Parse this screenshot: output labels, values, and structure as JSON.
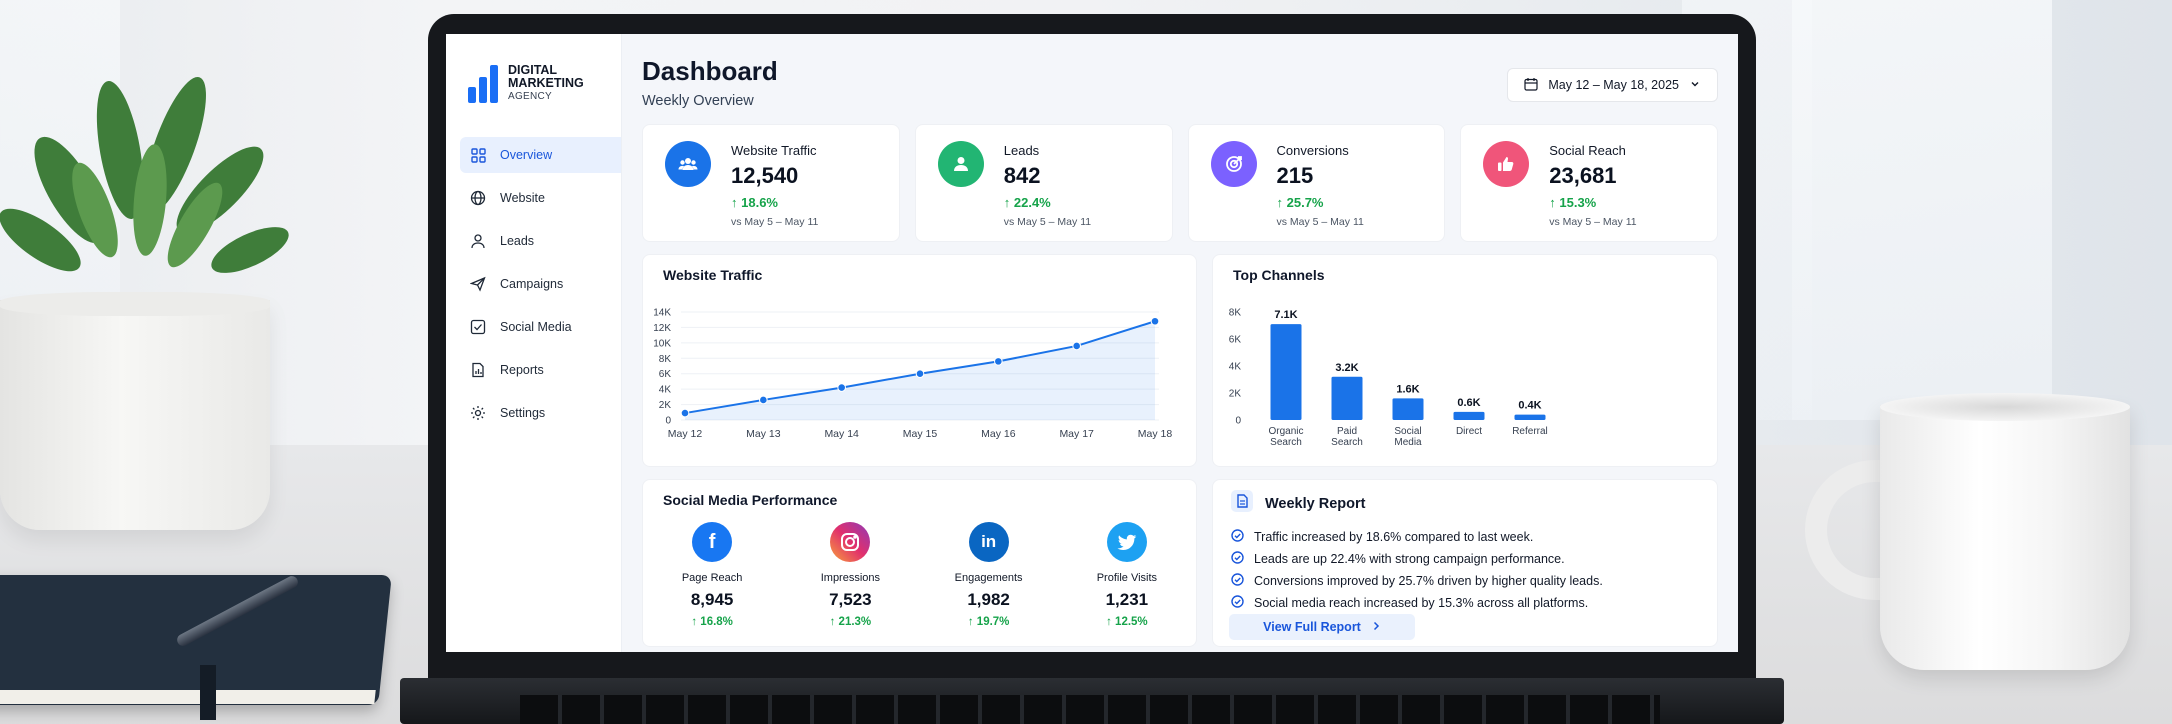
{
  "brand": {
    "line1": "DIGITAL",
    "line2": "MARKETING",
    "line3": "AGENCY"
  },
  "sidebar": {
    "items": [
      {
        "label": "Overview",
        "icon": "grid-icon",
        "active": true
      },
      {
        "label": "Website",
        "icon": "globe-icon"
      },
      {
        "label": "Leads",
        "icon": "user-icon"
      },
      {
        "label": "Campaigns",
        "icon": "send-icon"
      },
      {
        "label": "Social Media",
        "icon": "checkbox-icon"
      },
      {
        "label": "Reports",
        "icon": "report-icon"
      },
      {
        "label": "Settings",
        "icon": "gear-icon"
      }
    ]
  },
  "header": {
    "title": "Dashboard",
    "subtitle": "Weekly Overview",
    "date_range": "May 12 – May 18, 2025"
  },
  "cards": [
    {
      "label": "Website Traffic",
      "value": "12,540",
      "change": "18.6%",
      "period": "vs May 5 – May 11",
      "color": "#1a73e8",
      "icon": "users-icon"
    },
    {
      "label": "Leads",
      "value": "842",
      "change": "22.4%",
      "period": "vs May 5 – May 11",
      "color": "#22b573",
      "icon": "user-icon"
    },
    {
      "label": "Conversions",
      "value": "215",
      "change": "25.7%",
      "period": "vs May 5 – May 11",
      "color": "#7b61ff",
      "icon": "target-icon"
    },
    {
      "label": "Social Reach",
      "value": "23,681",
      "change": "15.3%",
      "period": "vs May 5 – May 11",
      "color": "#f0557a",
      "icon": "thumbs-up-icon"
    }
  ],
  "traffic_chart": {
    "title": "Website Traffic",
    "chart_data": {
      "type": "area",
      "x": [
        "May 12",
        "May 13",
        "May 14",
        "May 15",
        "May 16",
        "May 17",
        "May 18"
      ],
      "y": [
        900,
        2600,
        4200,
        6000,
        7600,
        9600,
        12800
      ],
      "ylim": [
        0,
        14000
      ],
      "yticks": [
        "0",
        "2K",
        "4K",
        "6K",
        "8K",
        "10K",
        "12K",
        "14K"
      ],
      "color": "#1a73e8"
    }
  },
  "channels_chart": {
    "title": "Top Channels",
    "chart_data": {
      "type": "bar",
      "categories": [
        [
          "Organic",
          "Search"
        ],
        [
          "Paid",
          "Search"
        ],
        [
          "Social",
          "Media"
        ],
        [
          "Direct"
        ],
        [
          "Referral"
        ]
      ],
      "values": [
        7100,
        3200,
        1600,
        600,
        400
      ],
      "labels": [
        "7.1K",
        "3.2K",
        "1.6K",
        "0.6K",
        "0.4K"
      ],
      "ylim": [
        0,
        8000
      ],
      "yticks": [
        "0",
        "2K",
        "4K",
        "6K",
        "8K"
      ],
      "color": "#1a73e8"
    }
  },
  "social": {
    "title": "Social Media Performance",
    "items": [
      {
        "label": "Page Reach",
        "value": "8,945",
        "change": "16.8%",
        "icon": "facebook-icon",
        "color": "#1877f2",
        "glyph": "f"
      },
      {
        "label": "Impressions",
        "value": "7,523",
        "change": "21.3%",
        "icon": "instagram-icon",
        "color": "#e1306c",
        "glyph": "◎"
      },
      {
        "label": "Engagements",
        "value": "1,982",
        "change": "19.7%",
        "icon": "linkedin-icon",
        "color": "#0a66c2",
        "glyph": "in"
      },
      {
        "label": "Profile Visits",
        "value": "1,231",
        "change": "12.5%",
        "icon": "twitter-icon",
        "color": "#1da1f2",
        "glyph": "🐦"
      }
    ]
  },
  "report": {
    "title": "Weekly Report",
    "items": [
      "Traffic increased by 18.6% compared to last week.",
      "Leads are up 22.4% with strong campaign performance.",
      "Conversions improved by 25.7% driven by higher quality leads.",
      "Social media reach increased by 15.3% across all platforms."
    ],
    "button": "View Full Report"
  }
}
